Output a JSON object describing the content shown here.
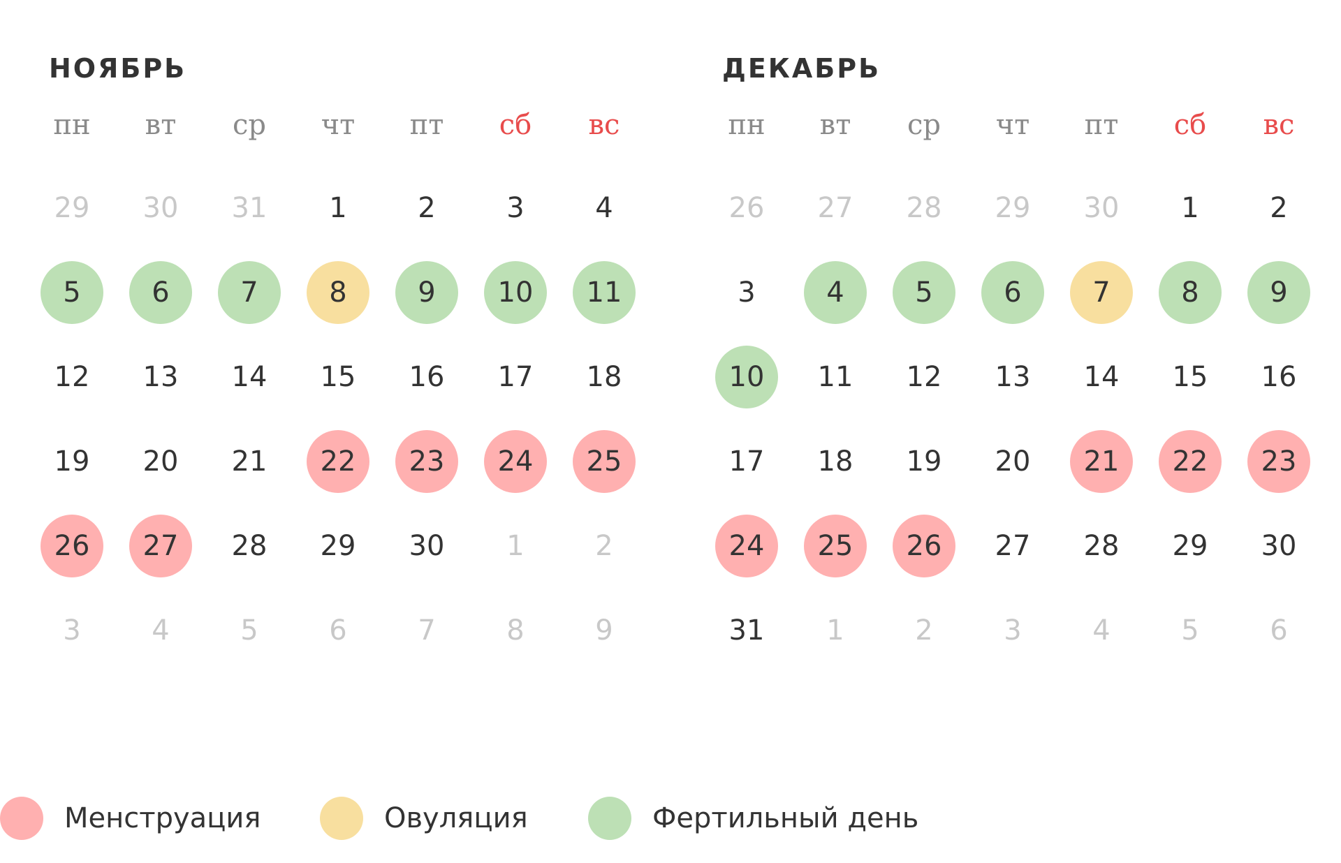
{
  "colors": {
    "menstruation": "#ffb0b0",
    "ovulation": "#f8df9f",
    "fertile": "#bde0b5",
    "weekend_header": "#e84c4c",
    "day_text": "#333333",
    "other_month_text": "#c8c8c8",
    "weekday_text": "#8a8a8a"
  },
  "weekdays": [
    "пн",
    "вт",
    "ср",
    "чт",
    "пт",
    "сб",
    "вс"
  ],
  "months": [
    {
      "title": "НОЯБРЬ",
      "weeks": [
        [
          {
            "d": "29",
            "t": "other"
          },
          {
            "d": "30",
            "t": "other"
          },
          {
            "d": "31",
            "t": "other"
          },
          {
            "d": "1",
            "t": ""
          },
          {
            "d": "2",
            "t": ""
          },
          {
            "d": "3",
            "t": ""
          },
          {
            "d": "4",
            "t": ""
          }
        ],
        [
          {
            "d": "5",
            "t": "fertile"
          },
          {
            "d": "6",
            "t": "fertile"
          },
          {
            "d": "7",
            "t": "fertile"
          },
          {
            "d": "8",
            "t": "ovulation"
          },
          {
            "d": "9",
            "t": "fertile"
          },
          {
            "d": "10",
            "t": "fertile"
          },
          {
            "d": "11",
            "t": "fertile"
          }
        ],
        [
          {
            "d": "12",
            "t": ""
          },
          {
            "d": "13",
            "t": ""
          },
          {
            "d": "14",
            "t": ""
          },
          {
            "d": "15",
            "t": ""
          },
          {
            "d": "16",
            "t": ""
          },
          {
            "d": "17",
            "t": ""
          },
          {
            "d": "18",
            "t": ""
          }
        ],
        [
          {
            "d": "19",
            "t": ""
          },
          {
            "d": "20",
            "t": ""
          },
          {
            "d": "21",
            "t": ""
          },
          {
            "d": "22",
            "t": "menstruation"
          },
          {
            "d": "23",
            "t": "menstruation"
          },
          {
            "d": "24",
            "t": "menstruation"
          },
          {
            "d": "25",
            "t": "menstruation"
          }
        ],
        [
          {
            "d": "26",
            "t": "menstruation"
          },
          {
            "d": "27",
            "t": "menstruation"
          },
          {
            "d": "28",
            "t": ""
          },
          {
            "d": "29",
            "t": ""
          },
          {
            "d": "30",
            "t": ""
          },
          {
            "d": "1",
            "t": "other"
          },
          {
            "d": "2",
            "t": "other"
          }
        ],
        [
          {
            "d": "3",
            "t": "other"
          },
          {
            "d": "4",
            "t": "other"
          },
          {
            "d": "5",
            "t": "other"
          },
          {
            "d": "6",
            "t": "other"
          },
          {
            "d": "7",
            "t": "other"
          },
          {
            "d": "8",
            "t": "other"
          },
          {
            "d": "9",
            "t": "other"
          }
        ]
      ]
    },
    {
      "title": "ДЕКАБРЬ",
      "weeks": [
        [
          {
            "d": "26",
            "t": "other"
          },
          {
            "d": "27",
            "t": "other"
          },
          {
            "d": "28",
            "t": "other"
          },
          {
            "d": "29",
            "t": "other"
          },
          {
            "d": "30",
            "t": "other"
          },
          {
            "d": "1",
            "t": ""
          },
          {
            "d": "2",
            "t": ""
          }
        ],
        [
          {
            "d": "3",
            "t": ""
          },
          {
            "d": "4",
            "t": "fertile"
          },
          {
            "d": "5",
            "t": "fertile"
          },
          {
            "d": "6",
            "t": "fertile"
          },
          {
            "d": "7",
            "t": "ovulation"
          },
          {
            "d": "8",
            "t": "fertile"
          },
          {
            "d": "9",
            "t": "fertile"
          }
        ],
        [
          {
            "d": "10",
            "t": "fertile"
          },
          {
            "d": "11",
            "t": ""
          },
          {
            "d": "12",
            "t": ""
          },
          {
            "d": "13",
            "t": ""
          },
          {
            "d": "14",
            "t": ""
          },
          {
            "d": "15",
            "t": ""
          },
          {
            "d": "16",
            "t": ""
          }
        ],
        [
          {
            "d": "17",
            "t": ""
          },
          {
            "d": "18",
            "t": ""
          },
          {
            "d": "19",
            "t": ""
          },
          {
            "d": "20",
            "t": ""
          },
          {
            "d": "21",
            "t": "menstruation"
          },
          {
            "d": "22",
            "t": "menstruation"
          },
          {
            "d": "23",
            "t": "menstruation"
          }
        ],
        [
          {
            "d": "24",
            "t": "menstruation"
          },
          {
            "d": "25",
            "t": "menstruation"
          },
          {
            "d": "26",
            "t": "menstruation"
          },
          {
            "d": "27",
            "t": ""
          },
          {
            "d": "28",
            "t": ""
          },
          {
            "d": "29",
            "t": ""
          },
          {
            "d": "30",
            "t": ""
          }
        ],
        [
          {
            "d": "31",
            "t": ""
          },
          {
            "d": "1",
            "t": "other"
          },
          {
            "d": "2",
            "t": "other"
          },
          {
            "d": "3",
            "t": "other"
          },
          {
            "d": "4",
            "t": "other"
          },
          {
            "d": "5",
            "t": "other"
          },
          {
            "d": "6",
            "t": "other"
          }
        ]
      ]
    }
  ],
  "legend": [
    {
      "key": "menstruation",
      "label": "Менструация"
    },
    {
      "key": "ovulation",
      "label": "Овуляция"
    },
    {
      "key": "fertile",
      "label": "Фертильный день"
    }
  ]
}
